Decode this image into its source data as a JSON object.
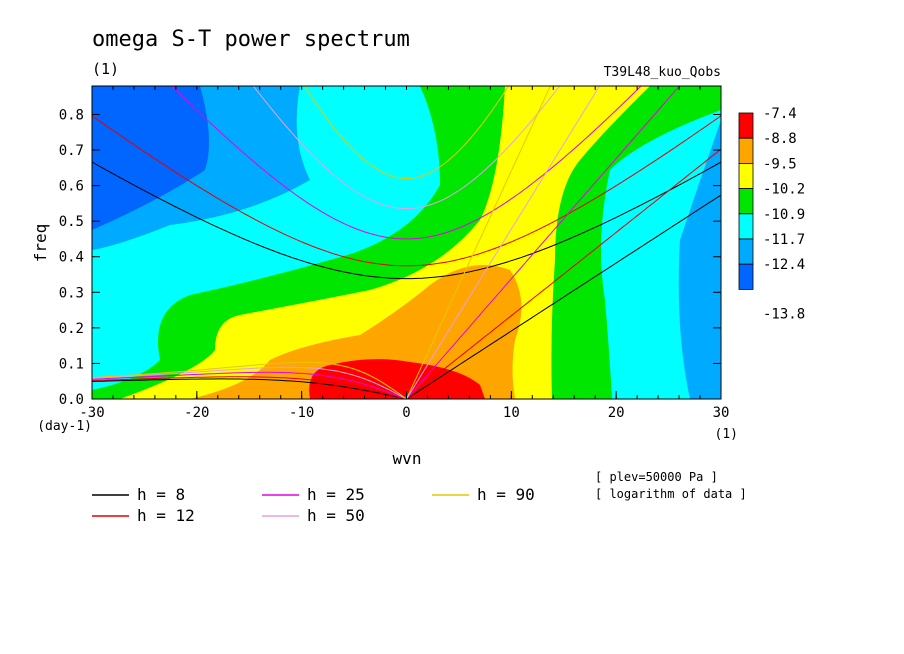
{
  "title": "omega S-T power spectrum",
  "subtitle": "(1)",
  "run_label": "T39L48_kuo_Qobs",
  "notes": [
    "[ plev=50000 Pa ]",
    "[ logarithm of data ]"
  ],
  "chart_data": {
    "type": "heatmap",
    "xlabel": "wvn",
    "ylabel": "freq",
    "x_unit": "(1)",
    "y_unit": "(day-1)",
    "xlim": [
      -30,
      30
    ],
    "ylim": [
      0.0,
      0.88
    ],
    "x_ticks": [
      -30,
      -20,
      -10,
      0,
      10,
      20,
      30
    ],
    "x_tick_labels": [
      "-30",
      "-20",
      "-10",
      "0",
      "10",
      "20",
      "30"
    ],
    "y_ticks": [
      0.0,
      0.1,
      0.2,
      0.3,
      0.4,
      0.5,
      0.6,
      0.7,
      0.8
    ],
    "y_tick_labels": [
      "0.0",
      "0.1",
      "0.2",
      "0.3",
      "0.4",
      "0.5",
      "0.6",
      "0.7",
      "0.8"
    ],
    "colorbar": {
      "levels": [
        "-7.4",
        "-8.8",
        "-9.5",
        "-10.2",
        "-10.9",
        "-11.7",
        "-12.4",
        "-13.8"
      ],
      "colors": [
        "#ff0000",
        "#ffa500",
        "#ffff00",
        "#00e600",
        "#00ffff",
        "#00aaff",
        "#0066ff"
      ]
    },
    "dispersion_curves": [
      {
        "label": "h =  8",
        "h": 8,
        "color": "#000000"
      },
      {
        "label": "h = 12",
        "h": 12,
        "color": "#e60000"
      },
      {
        "label": "h = 25",
        "h": 25,
        "color": "#e600e6"
      },
      {
        "label": "h = 50",
        "h": 50,
        "color": "#e6a0e6"
      },
      {
        "label": "h = 90",
        "h": 90,
        "color": "#e6c800"
      }
    ]
  }
}
